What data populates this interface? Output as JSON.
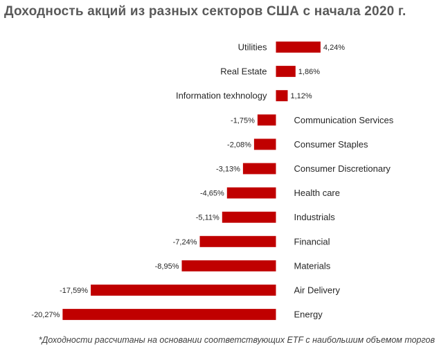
{
  "chart_data": {
    "type": "bar",
    "orientation": "horizontal",
    "title": "Доходность акций из разных секторов США с начала 2020 г.",
    "categories": [
      "Utilities",
      "Real Estate",
      "Information texhnology",
      "Communication Services",
      "Consumer Staples",
      "Consumer Discretionary",
      "Health care",
      "Industrials",
      "Financial",
      "Materials",
      "Air Delivery",
      "Energy"
    ],
    "values": [
      4.24,
      1.86,
      1.12,
      -1.75,
      -2.08,
      -3.13,
      -4.65,
      -5.11,
      -7.24,
      -8.95,
      -17.59,
      -20.27
    ],
    "value_labels": [
      "4,24%",
      "1,86%",
      "1,12%",
      "-1,75%",
      "-2,08%",
      "-3,13%",
      "-4,65%",
      "-5,11%",
      "-7,24%",
      "-8,95%",
      "-17,59%",
      "-20,27%"
    ],
    "unit": "%",
    "bar_color": "#c00000",
    "grid": false,
    "legend": "none"
  },
  "footnote": "*Доходности рассчитаны на основании соответствующих ETF с наибольшим объемом торгов"
}
